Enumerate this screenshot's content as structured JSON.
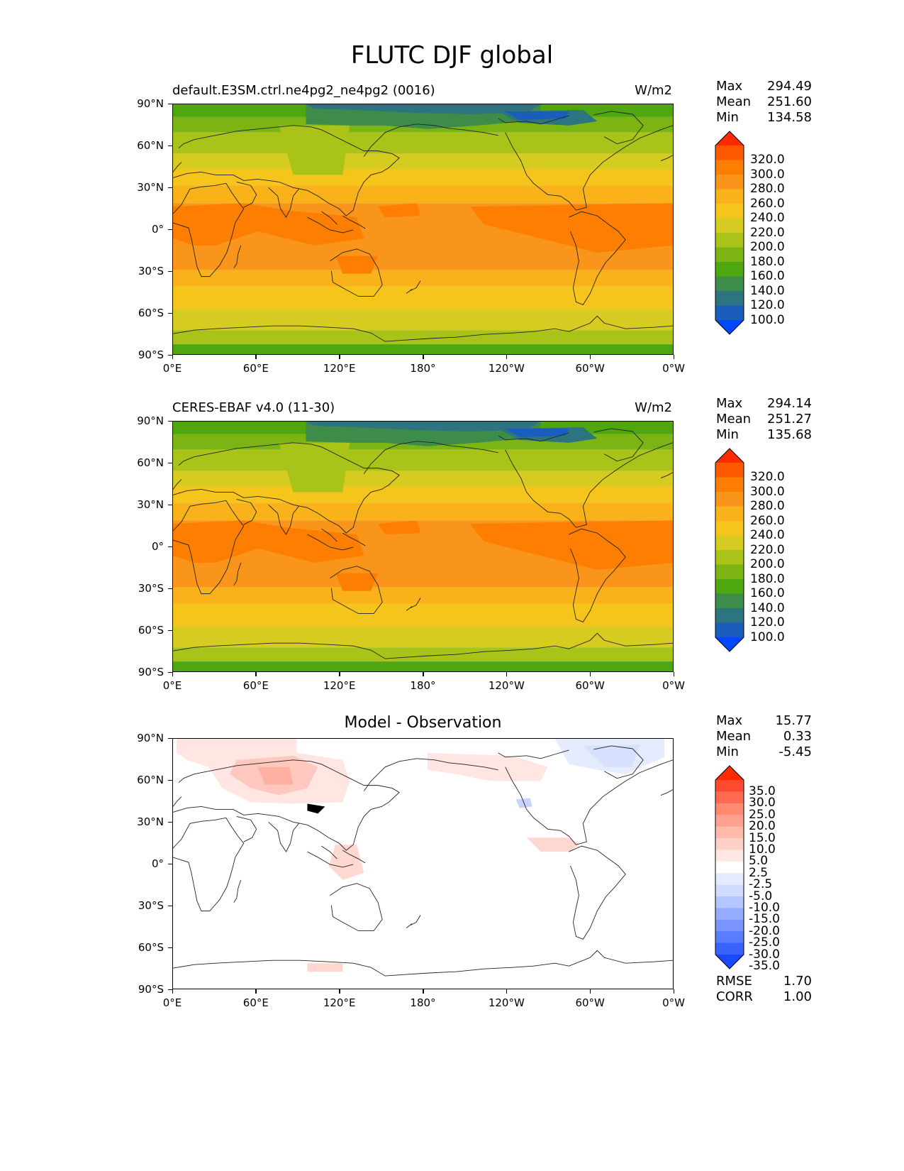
{
  "title": "FLUTC DJF global",
  "axes": {
    "lat_labels": [
      "90°N",
      "60°N",
      "30°N",
      "0°",
      "30°S",
      "60°S",
      "90°S"
    ],
    "lon_labels": [
      "0°E",
      "60°E",
      "120°E",
      "180°",
      "120°W",
      "60°W",
      "0°W"
    ]
  },
  "panels": [
    {
      "left_title": "default.E3SM.ctrl.ne4pg2_ne4pg2 (0016)",
      "right_title": "W/m2",
      "stats": {
        "max_label": "Max",
        "max": "294.49",
        "mean_label": "Mean",
        "mean": "251.60",
        "min_label": "Min",
        "min": "134.58"
      },
      "colorbar": {
        "labels": [
          "320.0",
          "300.0",
          "280.0",
          "260.0",
          "240.0",
          "220.0",
          "200.0",
          "180.0",
          "160.0",
          "140.0",
          "120.0",
          "100.0"
        ],
        "colors_top_to_bottom": [
          "#ff2a00",
          "#ff5a00",
          "#fd7e00",
          "#f9951a",
          "#f9b21a",
          "#f5c51c",
          "#d6cb20",
          "#a9c319",
          "#7cb414",
          "#4ea70f",
          "#3e8c4a",
          "#2b7480",
          "#1b5dbd",
          "#0048ff"
        ]
      }
    },
    {
      "left_title": "CERES-EBAF v4.0 (11-30)",
      "right_title": "W/m2",
      "stats": {
        "max_label": "Max",
        "max": "294.14",
        "mean_label": "Mean",
        "mean": "251.27",
        "min_label": "Min",
        "min": "135.68"
      },
      "colorbar": {
        "labels": [
          "320.0",
          "300.0",
          "280.0",
          "260.0",
          "240.0",
          "220.0",
          "200.0",
          "180.0",
          "160.0",
          "140.0",
          "120.0",
          "100.0"
        ],
        "colors_top_to_bottom": [
          "#ff2a00",
          "#ff5a00",
          "#fd7e00",
          "#f9951a",
          "#f9b21a",
          "#f5c51c",
          "#d6cb20",
          "#a9c319",
          "#7cb414",
          "#4ea70f",
          "#3e8c4a",
          "#2b7480",
          "#1b5dbd",
          "#0048ff"
        ]
      }
    },
    {
      "center_title": "Model - Observation",
      "stats": {
        "max_label": "Max",
        "max": "15.77",
        "mean_label": "Mean",
        "mean": "0.33",
        "min_label": "Min",
        "min": "-5.45"
      },
      "colorbar": {
        "labels": [
          "35.0",
          "30.0",
          "25.0",
          "20.0",
          "15.0",
          "10.0",
          "5.0",
          "2.5",
          "-2.5",
          "-5.0",
          "-10.0",
          "-15.0",
          "-20.0",
          "-25.0",
          "-30.0",
          "-35.0"
        ],
        "colors_top_to_bottom": [
          "#ff2a00",
          "#ff4a30",
          "#ff6a50",
          "#ff8a70",
          "#ffa090",
          "#ffbaaa",
          "#ffd0c8",
          "#ffe8e4",
          "#ffffff",
          "#e6ecff",
          "#d0dcff",
          "#b4c6ff",
          "#96acff",
          "#7a94ff",
          "#5a7cff",
          "#3a62ff",
          "#1a48ff"
        ]
      },
      "metrics": {
        "rmse_label": "RMSE",
        "rmse": "1.70",
        "corr_label": "CORR",
        "corr": "1.00"
      }
    }
  ]
}
